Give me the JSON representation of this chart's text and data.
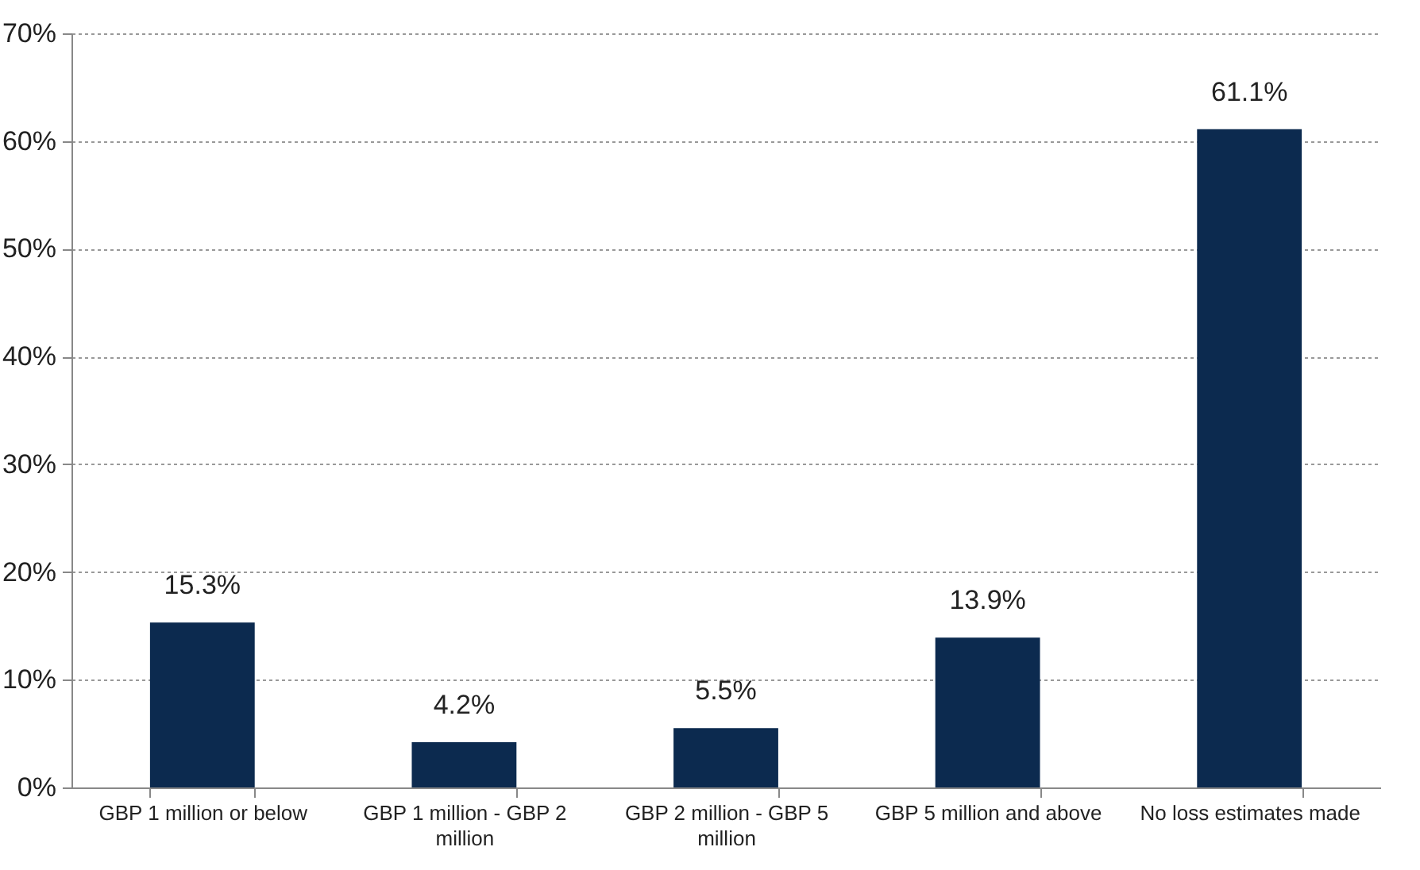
{
  "chart_data": {
    "type": "bar",
    "categories": [
      "GBP 1 million or below",
      "GBP 1 million - GBP 2 million",
      "GBP 2 million - GBP 5 million",
      "GBP 5 million and above",
      "No loss estimates made"
    ],
    "values": [
      15.3,
      4.2,
      5.5,
      13.9,
      61.1
    ],
    "value_labels": [
      "15.3%",
      "4.2%",
      "5.5%",
      "13.9%",
      "61.1%"
    ],
    "color": "#0c2a4f",
    "ylim": [
      0,
      70
    ],
    "yticks": [
      {
        "value": 0,
        "label": "0%"
      },
      {
        "value": 10,
        "label": "10%"
      },
      {
        "value": 20,
        "label": "20%"
      },
      {
        "value": 30,
        "label": "30%"
      },
      {
        "value": 40,
        "label": "40%"
      },
      {
        "value": 50,
        "label": "50%"
      },
      {
        "value": 60,
        "label": "60%"
      },
      {
        "value": 70,
        "label": "70%"
      }
    ],
    "grid": "y"
  }
}
